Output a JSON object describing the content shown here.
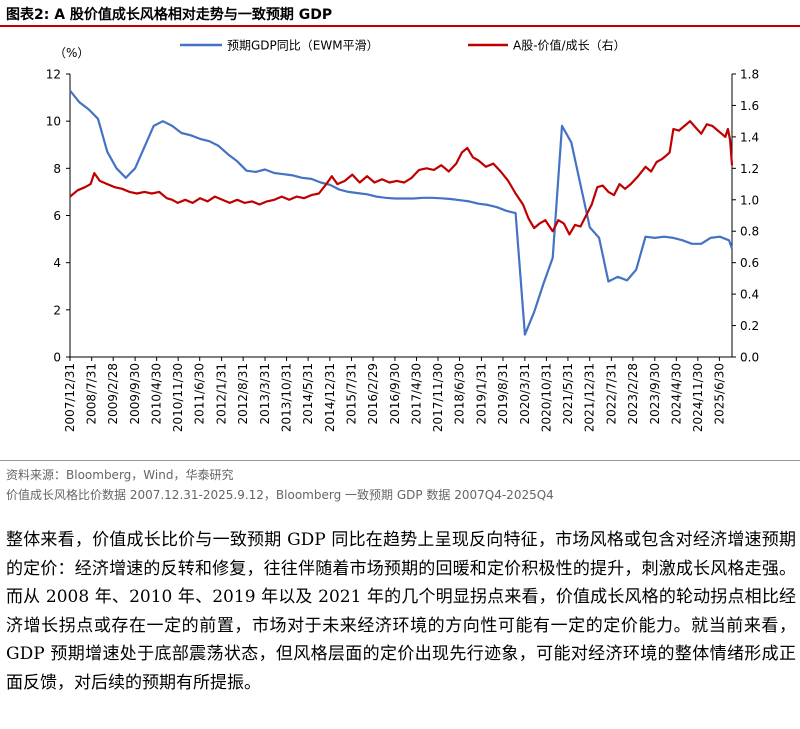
{
  "figure": {
    "title": "图表2:  A 股价值成长风格相对走势与一致预期 GDP",
    "source_line": "资料来源：Bloomberg，Wind，华泰研究",
    "note_line": "价值成长风格比价数据 2007.12.31-2025.9.12，Bloomberg 一致预期 GDP 数据 2007Q4-2025Q4",
    "body_text": "整体来看，价值成长比价与一致预期 GDP 同比在趋势上呈现反向特征，市场风格或包含对经济增速预期的定价：经济增速的反转和修复，往往伴随着市场预期的回暖和定价积极性的提升，刺激成长风格走强。而从 2008 年、2010 年、2019 年以及 2021 年的几个明显拐点来看，价值成长风格的轮动拐点相比经济增长拐点或存在一定的前置，市场对于未来经济环境的方向性可能有一定的定价能力。就当前来看，GDP 预期增速处于底部震荡状态，但风格层面的定价出现先行迹象，可能对经济环境的整体情绪形成正面反馈，对后续的预期有所提振。"
  },
  "colors": {
    "gdp": "#4472c4",
    "ratio": "#c00000",
    "title_rule": "#c00000"
  },
  "chart_data": {
    "type": "line",
    "title": "",
    "left_axis_label": "（%）",
    "left_ylim": [
      0,
      12
    ],
    "left_ticks": [
      "0",
      "2",
      "4",
      "6",
      "8",
      "10",
      "12"
    ],
    "right_ylim": [
      0.0,
      1.8
    ],
    "right_ticks": [
      "0.0",
      "0.2",
      "0.4",
      "0.6",
      "0.8",
      "1.0",
      "1.2",
      "1.4",
      "1.6",
      "1.8"
    ],
    "x_range": [
      2007.996,
      2025.83
    ],
    "x_ticks": [
      {
        "label": "2007/12/31",
        "t": 2007.996
      },
      {
        "label": "2008/7/31",
        "t": 2008.58
      },
      {
        "label": "2009/2/28",
        "t": 2009.16
      },
      {
        "label": "2009/9/30",
        "t": 2009.75
      },
      {
        "label": "2010/4/30",
        "t": 2010.33
      },
      {
        "label": "2010/11/30",
        "t": 2010.91
      },
      {
        "label": "2011/6/30",
        "t": 2011.49
      },
      {
        "label": "2012/1/31",
        "t": 2012.08
      },
      {
        "label": "2012/8/31",
        "t": 2012.66
      },
      {
        "label": "2013/3/31",
        "t": 2013.25
      },
      {
        "label": "2013/10/31",
        "t": 2013.83
      },
      {
        "label": "2014/5/31",
        "t": 2014.41
      },
      {
        "label": "2014/12/31",
        "t": 2014.996
      },
      {
        "label": "2015/7/31",
        "t": 2015.58
      },
      {
        "label": "2016/2/29",
        "t": 2016.16
      },
      {
        "label": "2016/9/30",
        "t": 2016.75
      },
      {
        "label": "2017/4/30",
        "t": 2017.33
      },
      {
        "label": "2017/11/30",
        "t": 2017.91
      },
      {
        "label": "2018/6/30",
        "t": 2018.49
      },
      {
        "label": "2019/1/31",
        "t": 2019.08
      },
      {
        "label": "2019/8/31",
        "t": 2019.66
      },
      {
        "label": "2020/3/31",
        "t": 2020.25
      },
      {
        "label": "2020/10/31",
        "t": 2020.83
      },
      {
        "label": "2021/5/31",
        "t": 2021.41
      },
      {
        "label": "2021/12/31",
        "t": 2021.996
      },
      {
        "label": "2022/7/31",
        "t": 2022.58
      },
      {
        "label": "2023/2/28",
        "t": 2023.16
      },
      {
        "label": "2023/9/30",
        "t": 2023.75
      },
      {
        "label": "2024/4/30",
        "t": 2024.33
      },
      {
        "label": "2024/11/30",
        "t": 2024.91
      },
      {
        "label": "2025/6/30",
        "t": 2025.49
      }
    ],
    "legend": "top",
    "series": [
      {
        "name": "预期GDP同比（EWM平滑）",
        "axis": "left",
        "points": [
          [
            2007.996,
            11.3
          ],
          [
            2008.25,
            10.8
          ],
          [
            2008.5,
            10.5
          ],
          [
            2008.75,
            10.1
          ],
          [
            2009.0,
            8.7
          ],
          [
            2009.25,
            8.0
          ],
          [
            2009.5,
            7.6
          ],
          [
            2009.75,
            8.0
          ],
          [
            2010.0,
            8.9
          ],
          [
            2010.25,
            9.8
          ],
          [
            2010.5,
            10.0
          ],
          [
            2010.75,
            9.8
          ],
          [
            2011.0,
            9.5
          ],
          [
            2011.25,
            9.4
          ],
          [
            2011.5,
            9.25
          ],
          [
            2011.75,
            9.15
          ],
          [
            2012.0,
            8.95
          ],
          [
            2012.25,
            8.6
          ],
          [
            2012.5,
            8.3
          ],
          [
            2012.75,
            7.9
          ],
          [
            2013.0,
            7.85
          ],
          [
            2013.25,
            7.95
          ],
          [
            2013.5,
            7.8
          ],
          [
            2013.75,
            7.75
          ],
          [
            2014.0,
            7.7
          ],
          [
            2014.25,
            7.6
          ],
          [
            2014.5,
            7.55
          ],
          [
            2014.75,
            7.4
          ],
          [
            2015.0,
            7.3
          ],
          [
            2015.25,
            7.1
          ],
          [
            2015.5,
            7.0
          ],
          [
            2015.75,
            6.95
          ],
          [
            2016.0,
            6.9
          ],
          [
            2016.25,
            6.8
          ],
          [
            2016.5,
            6.75
          ],
          [
            2016.75,
            6.72
          ],
          [
            2017.0,
            6.72
          ],
          [
            2017.25,
            6.72
          ],
          [
            2017.5,
            6.75
          ],
          [
            2017.75,
            6.75
          ],
          [
            2018.0,
            6.73
          ],
          [
            2018.25,
            6.7
          ],
          [
            2018.5,
            6.65
          ],
          [
            2018.75,
            6.6
          ],
          [
            2019.0,
            6.5
          ],
          [
            2019.25,
            6.45
          ],
          [
            2019.5,
            6.35
          ],
          [
            2019.75,
            6.2
          ],
          [
            2020.0,
            6.1
          ],
          [
            2020.25,
            0.95
          ],
          [
            2020.5,
            1.9
          ],
          [
            2020.75,
            3.1
          ],
          [
            2021.0,
            4.2
          ],
          [
            2021.25,
            9.8
          ],
          [
            2021.5,
            9.1
          ],
          [
            2021.75,
            7.3
          ],
          [
            2022.0,
            5.5
          ],
          [
            2022.25,
            5.05
          ],
          [
            2022.5,
            3.2
          ],
          [
            2022.75,
            3.4
          ],
          [
            2023.0,
            3.25
          ],
          [
            2023.25,
            3.7
          ],
          [
            2023.5,
            5.1
          ],
          [
            2023.75,
            5.05
          ],
          [
            2024.0,
            5.1
          ],
          [
            2024.25,
            5.05
          ],
          [
            2024.5,
            4.95
          ],
          [
            2024.75,
            4.8
          ],
          [
            2025.0,
            4.8
          ],
          [
            2025.25,
            5.05
          ],
          [
            2025.5,
            5.1
          ],
          [
            2025.75,
            4.95
          ],
          [
            2025.83,
            4.6
          ]
        ]
      },
      {
        "name": "A股-价值/成长（右）",
        "axis": "right",
        "points": [
          [
            2007.996,
            1.02
          ],
          [
            2008.2,
            1.06
          ],
          [
            2008.4,
            1.08
          ],
          [
            2008.55,
            1.1
          ],
          [
            2008.65,
            1.17
          ],
          [
            2008.8,
            1.12
          ],
          [
            2009.0,
            1.1
          ],
          [
            2009.2,
            1.08
          ],
          [
            2009.4,
            1.07
          ],
          [
            2009.6,
            1.05
          ],
          [
            2009.8,
            1.04
          ],
          [
            2010.0,
            1.05
          ],
          [
            2010.2,
            1.04
          ],
          [
            2010.4,
            1.05
          ],
          [
            2010.6,
            1.01
          ],
          [
            2010.75,
            1.0
          ],
          [
            2010.9,
            0.98
          ],
          [
            2011.1,
            1.0
          ],
          [
            2011.3,
            0.98
          ],
          [
            2011.5,
            1.01
          ],
          [
            2011.7,
            0.99
          ],
          [
            2011.9,
            1.02
          ],
          [
            2012.1,
            1.0
          ],
          [
            2012.3,
            0.98
          ],
          [
            2012.5,
            1.0
          ],
          [
            2012.7,
            0.98
          ],
          [
            2012.9,
            0.99
          ],
          [
            2013.1,
            0.97
          ],
          [
            2013.3,
            0.99
          ],
          [
            2013.5,
            1.0
          ],
          [
            2013.7,
            1.02
          ],
          [
            2013.9,
            1.0
          ],
          [
            2014.1,
            1.02
          ],
          [
            2014.3,
            1.01
          ],
          [
            2014.5,
            1.03
          ],
          [
            2014.7,
            1.04
          ],
          [
            2014.9,
            1.1
          ],
          [
            2015.05,
            1.15
          ],
          [
            2015.2,
            1.1
          ],
          [
            2015.4,
            1.12
          ],
          [
            2015.6,
            1.16
          ],
          [
            2015.8,
            1.11
          ],
          [
            2016.0,
            1.15
          ],
          [
            2016.2,
            1.11
          ],
          [
            2016.4,
            1.13
          ],
          [
            2016.6,
            1.11
          ],
          [
            2016.8,
            1.12
          ],
          [
            2017.0,
            1.11
          ],
          [
            2017.2,
            1.14
          ],
          [
            2017.4,
            1.19
          ],
          [
            2017.6,
            1.2
          ],
          [
            2017.8,
            1.19
          ],
          [
            2018.0,
            1.22
          ],
          [
            2018.2,
            1.18
          ],
          [
            2018.4,
            1.23
          ],
          [
            2018.55,
            1.3
          ],
          [
            2018.7,
            1.33
          ],
          [
            2018.85,
            1.27
          ],
          [
            2019.0,
            1.25
          ],
          [
            2019.2,
            1.21
          ],
          [
            2019.4,
            1.23
          ],
          [
            2019.6,
            1.18
          ],
          [
            2019.8,
            1.12
          ],
          [
            2020.0,
            1.04
          ],
          [
            2020.2,
            0.97
          ],
          [
            2020.35,
            0.88
          ],
          [
            2020.5,
            0.82
          ],
          [
            2020.65,
            0.85
          ],
          [
            2020.8,
            0.87
          ],
          [
            2021.0,
            0.8
          ],
          [
            2021.15,
            0.87
          ],
          [
            2021.3,
            0.85
          ],
          [
            2021.45,
            0.78
          ],
          [
            2021.6,
            0.84
          ],
          [
            2021.75,
            0.83
          ],
          [
            2021.9,
            0.9
          ],
          [
            2022.05,
            0.97
          ],
          [
            2022.2,
            1.08
          ],
          [
            2022.35,
            1.09
          ],
          [
            2022.5,
            1.05
          ],
          [
            2022.65,
            1.03
          ],
          [
            2022.8,
            1.1
          ],
          [
            2022.95,
            1.07
          ],
          [
            2023.1,
            1.1
          ],
          [
            2023.3,
            1.15
          ],
          [
            2023.5,
            1.21
          ],
          [
            2023.65,
            1.18
          ],
          [
            2023.8,
            1.24
          ],
          [
            2023.95,
            1.26
          ],
          [
            2024.05,
            1.28
          ],
          [
            2024.15,
            1.3
          ],
          [
            2024.25,
            1.45
          ],
          [
            2024.4,
            1.44
          ],
          [
            2024.55,
            1.47
          ],
          [
            2024.7,
            1.5
          ],
          [
            2024.85,
            1.46
          ],
          [
            2025.0,
            1.42
          ],
          [
            2025.15,
            1.48
          ],
          [
            2025.3,
            1.47
          ],
          [
            2025.45,
            1.44
          ],
          [
            2025.55,
            1.42
          ],
          [
            2025.65,
            1.4
          ],
          [
            2025.72,
            1.45
          ],
          [
            2025.78,
            1.38
          ],
          [
            2025.83,
            1.22
          ]
        ]
      }
    ]
  }
}
